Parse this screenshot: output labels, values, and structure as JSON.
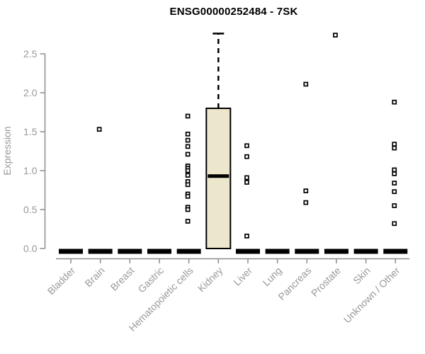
{
  "chart_data": {
    "type": "boxplot",
    "title": "ENSG00000252484 - 7SK",
    "ylabel": "Expression",
    "ylim": [
      0,
      2.9
    ],
    "yticks": [
      0.0,
      0.5,
      1.0,
      1.5,
      2.0,
      2.5
    ],
    "ytick_labels": [
      "0.0",
      "0.5",
      "1.0",
      "1.5",
      "2.0",
      "2.5"
    ],
    "legend": "none",
    "grid": "off",
    "categories": [
      "Bladder",
      "Brain",
      "Breast",
      "Gastric",
      "Hematopoietic cells",
      "Kidney",
      "Liver",
      "Lung",
      "Pancreas",
      "Prostate",
      "Skin",
      "Unknown / Other"
    ],
    "series": [
      {
        "category": "Bladder",
        "collapsed_at_zero": true,
        "points": []
      },
      {
        "category": "Brain",
        "collapsed_at_zero": true,
        "points": [
          1.53
        ]
      },
      {
        "category": "Breast",
        "collapsed_at_zero": true,
        "points": []
      },
      {
        "category": "Gastric",
        "collapsed_at_zero": true,
        "points": []
      },
      {
        "category": "Hematopoietic cells",
        "collapsed_at_zero": true,
        "points": [
          1.7,
          1.47,
          1.39,
          1.31,
          1.21,
          1.06,
          1.03,
          1.0,
          0.94,
          0.86,
          0.82,
          0.7,
          0.67,
          0.53,
          0.5,
          0.35
        ]
      },
      {
        "category": "Kidney",
        "collapsed_at_zero": false,
        "box": {
          "whisker_low": 0.0,
          "q1": 0.0,
          "median": 0.93,
          "q3": 1.8,
          "whisker_high": 2.76
        },
        "points": []
      },
      {
        "category": "Liver",
        "collapsed_at_zero": true,
        "points": [
          1.32,
          1.18,
          0.91,
          0.85,
          0.16
        ]
      },
      {
        "category": "Lung",
        "collapsed_at_zero": true,
        "points": []
      },
      {
        "category": "Pancreas",
        "collapsed_at_zero": true,
        "points": [
          2.11,
          0.74,
          0.59
        ]
      },
      {
        "category": "Prostate",
        "collapsed_at_zero": true,
        "points": [
          2.74
        ]
      },
      {
        "category": "Skin",
        "collapsed_at_zero": true,
        "points": []
      },
      {
        "category": "Unknown / Other",
        "collapsed_at_zero": true,
        "points": [
          1.88,
          1.34,
          1.29,
          1.01,
          0.96,
          0.84,
          0.73,
          0.55,
          0.32
        ]
      }
    ],
    "colors": {
      "box_fill": "#ECE7CC",
      "box_border": "#000000",
      "median": "#000000",
      "zero_bar": "#000000",
      "point_stroke": "#000000",
      "point_fill": "#ffffff",
      "axis_line": "#8c8c8c",
      "tick_text": "#999999"
    }
  }
}
